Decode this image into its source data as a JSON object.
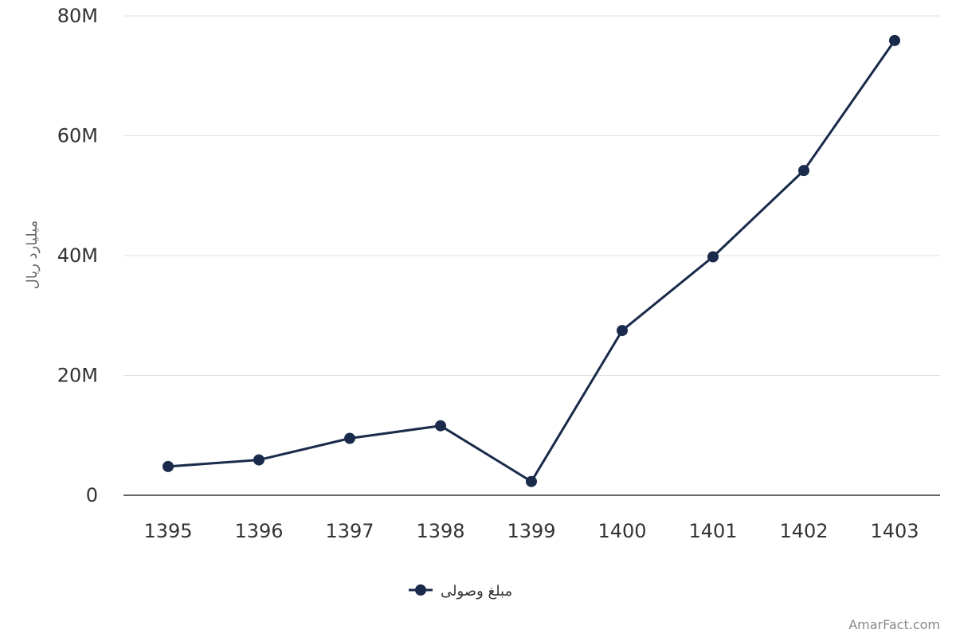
{
  "chart_data": {
    "type": "line",
    "categories": [
      "1395",
      "1396",
      "1397",
      "1398",
      "1399",
      "1400",
      "1401",
      "1402",
      "1403"
    ],
    "series": [
      {
        "name": "مبلغ وصولی",
        "values": [
          4800000,
          5900000,
          9500000,
          11600000,
          2300000,
          27500000,
          39800000,
          54200000,
          75900000
        ],
        "color": "#1a2a4a"
      }
    ],
    "ylabel": "میلیارد ریال",
    "ylim": [
      0,
      80000000
    ],
    "yticks": [
      0,
      20000000,
      40000000,
      60000000,
      80000000
    ],
    "ytick_labels": [
      "0",
      "20M",
      "40M",
      "60M",
      "80M"
    ],
    "grid": true,
    "legend": "bottom-center"
  },
  "colors": {
    "line": "#1a2a4a",
    "grid": "#e0e0e0",
    "axis": "#333333"
  },
  "watermark": "AmarFact.com"
}
